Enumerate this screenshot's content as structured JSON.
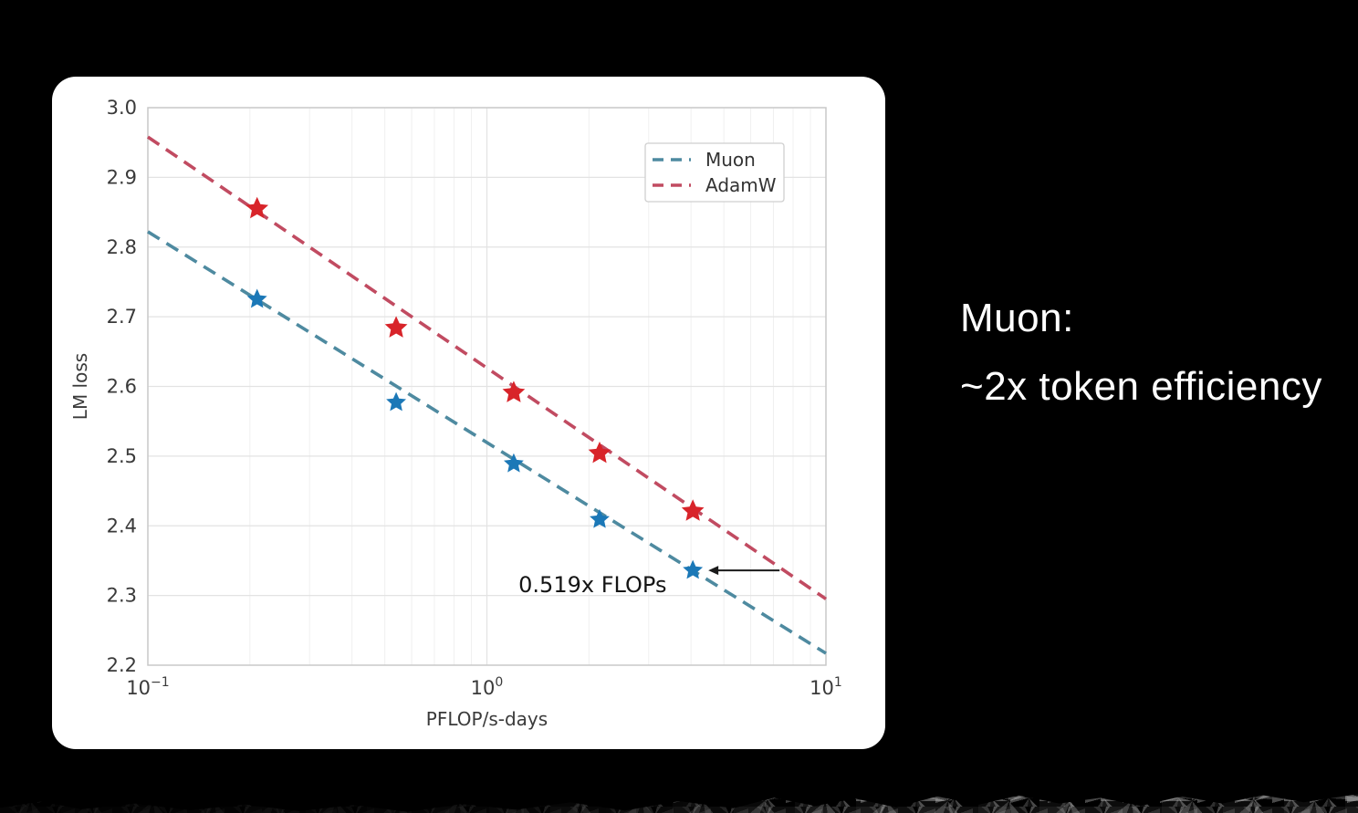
{
  "slide": {
    "background_color": "#000000",
    "card_color": "#ffffff",
    "caption": {
      "line1": "Muon:",
      "line2": "~2x token efficiency",
      "text_color": "#ffffff"
    }
  },
  "chart_data": {
    "type": "line",
    "title": "",
    "xlabel": "PFLOP/s-days",
    "ylabel": "LM loss",
    "x_scale": "log",
    "xlim": [
      0.1,
      10
    ],
    "ylim": [
      2.2,
      3.0
    ],
    "yticks": [
      2.2,
      2.3,
      2.4,
      2.5,
      2.6,
      2.7,
      2.8,
      2.9,
      3.0
    ],
    "xticks": [
      {
        "value": 0.1,
        "base": "10",
        "exp": "−1"
      },
      {
        "value": 1,
        "base": "10",
        "exp": "0"
      },
      {
        "value": 10,
        "base": "10",
        "exp": "1"
      }
    ],
    "grid": true,
    "legend_position": "upper right",
    "series": [
      {
        "name": "Muon",
        "linestyle": "dashed",
        "marker": "star",
        "line_color": "#4e8aa0",
        "marker_color": "#1b78b7",
        "x": [
          0.21,
          0.54,
          1.2,
          2.15,
          4.05
        ],
        "y": [
          2.725,
          2.577,
          2.489,
          2.409,
          2.336
        ],
        "fit_line": {
          "x": [
            0.1,
            10
          ],
          "y": [
            2.822,
            2.217
          ]
        }
      },
      {
        "name": "AdamW",
        "linestyle": "dashed",
        "marker": "star",
        "line_color": "#c14b61",
        "marker_color": "#d8242a",
        "x": [
          0.21,
          0.54,
          1.2,
          2.15,
          4.05
        ],
        "y": [
          2.855,
          2.684,
          2.591,
          2.504,
          2.421
        ],
        "fit_line": {
          "x": [
            0.1,
            10
          ],
          "y": [
            2.958,
            2.295
          ]
        }
      }
    ],
    "annotation": {
      "text": "0.519x FLOPs",
      "arrow_y": 2.336,
      "arrow_x_from": 7.3,
      "arrow_x_to": 4.5,
      "text_x": 2.05,
      "text_y": 2.305,
      "arrow_color": "#1a1a1a",
      "text_color": "#151515"
    },
    "style": {
      "grid_major_color": "#e3e3e3",
      "grid_minor_color": "#f0f0f0",
      "spine_color": "#c9c9c9",
      "tick_label_color": "#3a3a3a",
      "legend_border_color": "#cfcfcf",
      "legend_text_color": "#333333"
    }
  }
}
